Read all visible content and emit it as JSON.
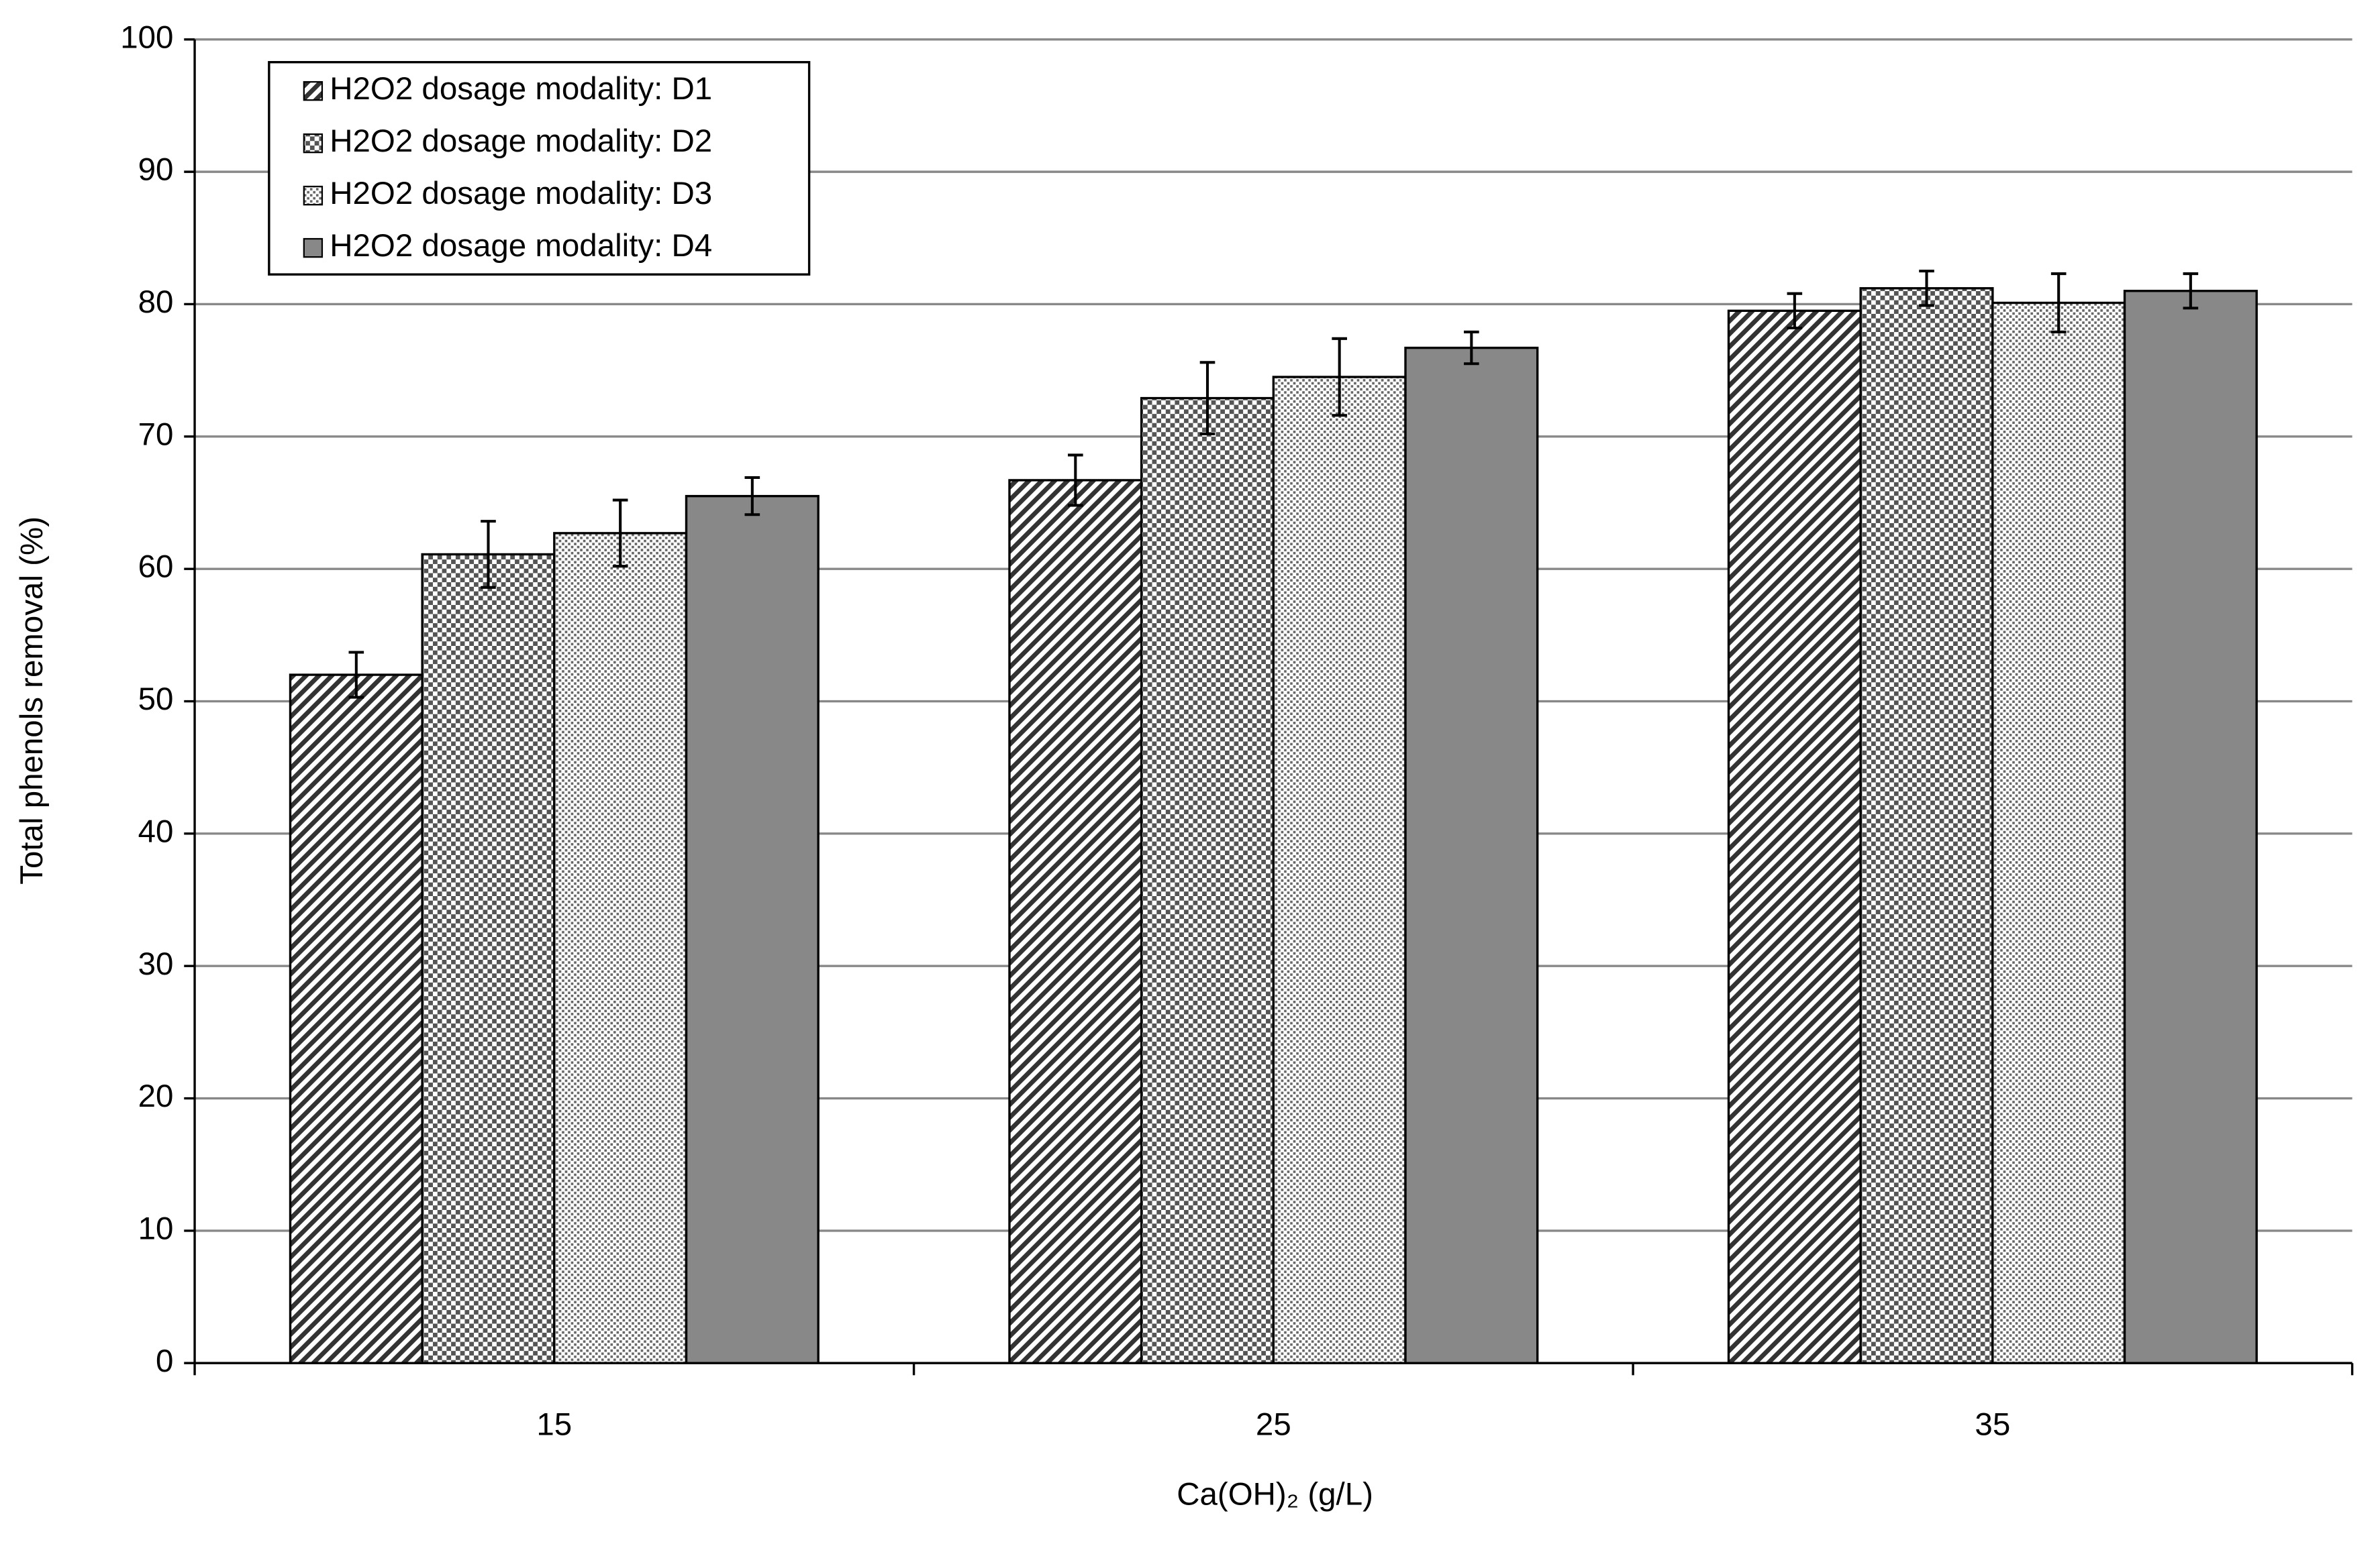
{
  "chart_data": {
    "type": "bar",
    "x_label": "Ca(OH)₂ (g/L)",
    "y_label": "Total phenols removal (%)",
    "categories": [
      "15",
      "25",
      "35"
    ],
    "series": [
      {
        "name": "H2O2 dosage modality: D1",
        "color": "#333333",
        "pattern": "diagonal",
        "values": [
          52,
          66.7,
          79.5
        ],
        "errors": [
          1.7,
          1.9,
          1.3
        ]
      },
      {
        "name": "H2O2 dosage modality: D2",
        "color": "#555555",
        "pattern": "checker",
        "values": [
          61.1,
          72.9,
          81.2
        ],
        "errors": [
          2.5,
          2.7,
          1.3
        ]
      },
      {
        "name": "H2O2 dosage modality: D3",
        "color": "#666666",
        "pattern": "dots",
        "values": [
          62.7,
          74.5,
          80.1
        ],
        "errors": [
          2.5,
          2.9,
          2.2
        ]
      },
      {
        "name": "H2O2 dosage modality: D4",
        "color": "#888888",
        "pattern": "solid",
        "values": [
          65.5,
          76.7,
          81
        ],
        "errors": [
          1.4,
          1.2,
          1.3
        ]
      }
    ],
    "ylim": [
      0,
      100
    ],
    "yticks": [
      0,
      10,
      20,
      30,
      40,
      50,
      60,
      70,
      80,
      90,
      100
    ],
    "grid": true,
    "legend": "upper left"
  }
}
